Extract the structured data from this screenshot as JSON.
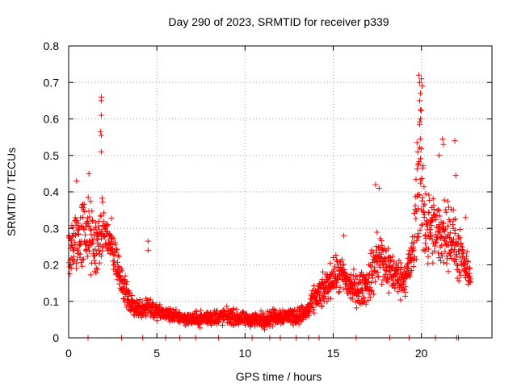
{
  "chart_data": {
    "type": "scatter",
    "title": "Day 290 of 2023, SRMTID for receiver p339",
    "xlabel": "GPS time / hours",
    "ylabel": "SRMTID / TECUs",
    "xlim": [
      0,
      24
    ],
    "ylim": [
      0,
      0.8
    ],
    "xticks": [
      0,
      5,
      10,
      15,
      20
    ],
    "yticks": [
      0,
      0.1,
      0.2,
      0.3,
      0.4,
      0.5,
      0.6,
      0.7,
      0.8
    ],
    "xtick_labels": [
      "0",
      "5",
      "10",
      "15",
      "20"
    ],
    "ytick_labels": [
      "0",
      "0.1",
      "0.2",
      "0.3",
      "0.4",
      "0.5",
      "0.6",
      "0.7",
      "0.8"
    ],
    "grid": true,
    "marker": "+",
    "color": "#ff0000",
    "envelope": [
      {
        "x": 0.0,
        "center": 0.24,
        "spread": 0.09
      },
      {
        "x": 0.5,
        "center": 0.27,
        "spread": 0.1
      },
      {
        "x": 1.0,
        "center": 0.3,
        "spread": 0.12
      },
      {
        "x": 1.5,
        "center": 0.24,
        "spread": 0.1
      },
      {
        "x": 2.0,
        "center": 0.3,
        "spread": 0.08
      },
      {
        "x": 2.5,
        "center": 0.24,
        "spread": 0.07
      },
      {
        "x": 3.0,
        "center": 0.16,
        "spread": 0.05
      },
      {
        "x": 3.5,
        "center": 0.09,
        "spread": 0.03
      },
      {
        "x": 4.0,
        "center": 0.08,
        "spread": 0.03
      },
      {
        "x": 4.5,
        "center": 0.09,
        "spread": 0.04
      },
      {
        "x": 5.0,
        "center": 0.07,
        "spread": 0.025
      },
      {
        "x": 6.0,
        "center": 0.06,
        "spread": 0.02
      },
      {
        "x": 7.0,
        "center": 0.05,
        "spread": 0.02
      },
      {
        "x": 8.0,
        "center": 0.055,
        "spread": 0.025
      },
      {
        "x": 9.0,
        "center": 0.06,
        "spread": 0.025
      },
      {
        "x": 10.0,
        "center": 0.05,
        "spread": 0.02
      },
      {
        "x": 11.0,
        "center": 0.05,
        "spread": 0.025
      },
      {
        "x": 12.0,
        "center": 0.06,
        "spread": 0.025
      },
      {
        "x": 13.0,
        "center": 0.06,
        "spread": 0.025
      },
      {
        "x": 13.5,
        "center": 0.07,
        "spread": 0.03
      },
      {
        "x": 14.0,
        "center": 0.11,
        "spread": 0.04
      },
      {
        "x": 14.5,
        "center": 0.13,
        "spread": 0.05
      },
      {
        "x": 15.0,
        "center": 0.17,
        "spread": 0.05
      },
      {
        "x": 15.5,
        "center": 0.17,
        "spread": 0.06
      },
      {
        "x": 16.0,
        "center": 0.14,
        "spread": 0.05
      },
      {
        "x": 16.5,
        "center": 0.13,
        "spread": 0.05
      },
      {
        "x": 17.0,
        "center": 0.15,
        "spread": 0.06
      },
      {
        "x": 17.5,
        "center": 0.22,
        "spread": 0.09
      },
      {
        "x": 18.0,
        "center": 0.2,
        "spread": 0.08
      },
      {
        "x": 18.5,
        "center": 0.17,
        "spread": 0.06
      },
      {
        "x": 19.0,
        "center": 0.16,
        "spread": 0.05
      },
      {
        "x": 19.5,
        "center": 0.22,
        "spread": 0.08
      },
      {
        "x": 19.9,
        "center": 0.45,
        "spread": 0.22
      },
      {
        "x": 20.3,
        "center": 0.3,
        "spread": 0.12
      },
      {
        "x": 21.0,
        "center": 0.28,
        "spread": 0.1
      },
      {
        "x": 21.5,
        "center": 0.3,
        "spread": 0.11
      },
      {
        "x": 22.0,
        "center": 0.24,
        "spread": 0.09
      },
      {
        "x": 22.5,
        "center": 0.19,
        "spread": 0.05
      },
      {
        "x": 22.8,
        "center": 0.17,
        "spread": 0.04
      }
    ],
    "peaks": [
      {
        "x": 1.85,
        "y": 0.66
      },
      {
        "x": 1.85,
        "y": 0.65
      },
      {
        "x": 1.85,
        "y": 0.61
      },
      {
        "x": 1.8,
        "y": 0.565
      },
      {
        "x": 1.85,
        "y": 0.555
      },
      {
        "x": 1.85,
        "y": 0.51
      },
      {
        "x": 1.15,
        "y": 0.45
      },
      {
        "x": 0.45,
        "y": 0.43
      },
      {
        "x": 4.5,
        "y": 0.265
      },
      {
        "x": 4.5,
        "y": 0.24
      },
      {
        "x": 15.6,
        "y": 0.28
      },
      {
        "x": 17.4,
        "y": 0.42
      },
      {
        "x": 17.6,
        "y": 0.41
      },
      {
        "x": 19.85,
        "y": 0.72
      },
      {
        "x": 20.0,
        "y": 0.71
      },
      {
        "x": 19.9,
        "y": 0.7
      },
      {
        "x": 20.05,
        "y": 0.69
      },
      {
        "x": 19.95,
        "y": 0.67
      },
      {
        "x": 19.9,
        "y": 0.65
      },
      {
        "x": 19.95,
        "y": 0.625
      },
      {
        "x": 19.95,
        "y": 0.6
      },
      {
        "x": 19.9,
        "y": 0.585
      },
      {
        "x": 19.75,
        "y": 0.535
      },
      {
        "x": 19.8,
        "y": 0.51
      },
      {
        "x": 21.0,
        "y": 0.5
      },
      {
        "x": 21.2,
        "y": 0.545
      },
      {
        "x": 21.25,
        "y": 0.53
      },
      {
        "x": 21.9,
        "y": 0.54
      },
      {
        "x": 21.95,
        "y": 0.445
      },
      {
        "x": 22.5,
        "y": 0.33
      }
    ],
    "zero_points": [
      1.1,
      3.0,
      4.2,
      5.5,
      6.3,
      7.2,
      8.5,
      10.4,
      11.4,
      12.0,
      12.9,
      13.6,
      14.2,
      16.3,
      18.2,
      19.3,
      20.8,
      22.0,
      22.1
    ]
  }
}
